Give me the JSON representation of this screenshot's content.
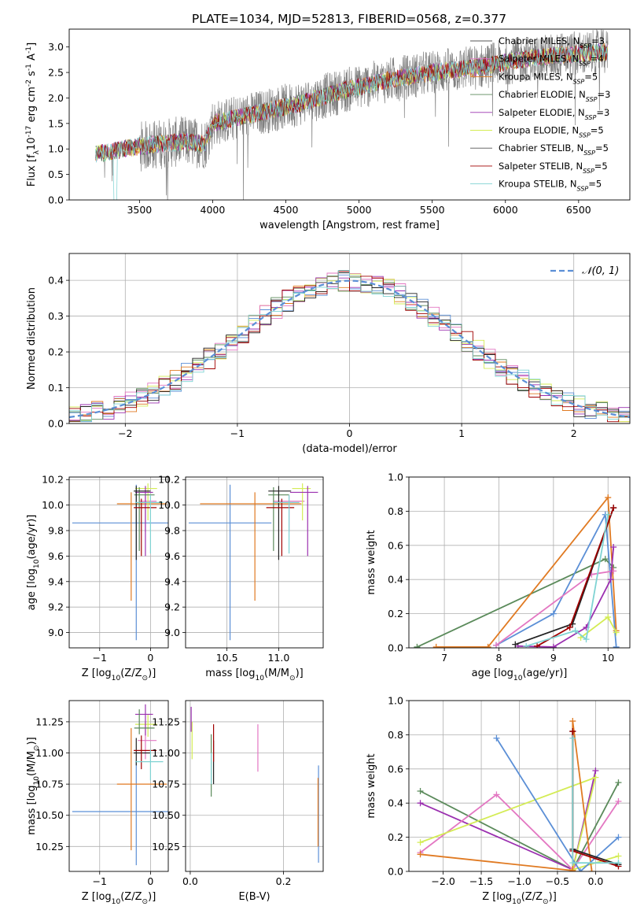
{
  "title": "PLATE=1034, MJD=52813, FIBERID=0568, z=0.377",
  "colors": {
    "cm": "#ffffff",
    "chabrier_miles": "#222222",
    "salpeter_miles": "#e377c2",
    "kroupa_miles": "#e07a22",
    "chabrier_elodie": "#5a8a5a",
    "salpeter_elodie": "#9b30b0",
    "kroupa_elodie": "#d4ec55",
    "chabrier_stelib": "#555555",
    "salpeter_stelib": "#a00000",
    "kroupa_stelib": "#7fd3d3",
    "data": "#808080",
    "normal": "#5b8fd6",
    "blue": "#5b8fd6"
  },
  "chart_data": [
    {
      "id": "spectrum",
      "type": "line",
      "xlabel": "wavelength [Angstrom, rest frame]",
      "ylabel": "Flux [f$_\\lambda$10$^{-17}$ erg cm$^{-2}$ s$^{-1}$ A$^{-1}$]",
      "xlim": [
        3020,
        6850
      ],
      "ylim": [
        0,
        3.35
      ],
      "xticks": [
        3500,
        4000,
        4500,
        5000,
        5500,
        6000,
        6500
      ],
      "yticks": [
        0.0,
        0.5,
        1.0,
        1.5,
        2.0,
        2.5,
        3.0
      ],
      "grid": false,
      "legend_position": "top-right",
      "legend": [
        {
          "label": "Chabrier MILES, N",
          "sub": "SSP",
          "tail": "=3",
          "color": "#ffffff"
        },
        {
          "label": "Salpeter MILES, N",
          "sub": "SSP",
          "tail": "=4",
          "color": "#e377c2"
        },
        {
          "label": "Kroupa MILES, N",
          "sub": "SSP",
          "tail": "=5",
          "color": "#e07a22"
        },
        {
          "label": "Chabrier ELODIE, N",
          "sub": "SSP",
          "tail": "=3",
          "color": "#5a8a5a"
        },
        {
          "label": "Salpeter ELODIE, N",
          "sub": "SSP",
          "tail": "=3",
          "color": "#9b30b0"
        },
        {
          "label": "Kroupa ELODIE, N",
          "sub": "SSP",
          "tail": "=5",
          "color": "#d4ec55"
        },
        {
          "label": "Chabrier STELIB, N",
          "sub": "SSP",
          "tail": "=5",
          "color": "#555555"
        },
        {
          "label": "Salpeter STELIB, N",
          "sub": "SSP",
          "tail": "=5",
          "color": "#a00000"
        },
        {
          "label": "Kroupa STELIB, N",
          "sub": "SSP",
          "tail": "=5",
          "color": "#7fd3d3"
        }
      ],
      "continuum": [
        [
          3200,
          0.9
        ],
        [
          3500,
          1.05
        ],
        [
          3800,
          1.15
        ],
        [
          3950,
          1.1
        ],
        [
          4000,
          1.5
        ],
        [
          4300,
          1.7
        ],
        [
          4600,
          1.9
        ],
        [
          4900,
          2.15
        ],
        [
          5200,
          2.35
        ],
        [
          5500,
          2.5
        ],
        [
          5800,
          2.6
        ],
        [
          6100,
          2.75
        ],
        [
          6400,
          2.85
        ],
        [
          6700,
          2.9
        ]
      ]
    },
    {
      "id": "residual-histogram",
      "type": "line",
      "xlabel": "(data-model)/error",
      "ylabel": "Normed distribution",
      "xlim": [
        -2.5,
        2.5
      ],
      "ylim": [
        0,
        0.475
      ],
      "xticks": [
        -2,
        -1,
        0,
        1,
        2
      ],
      "yticks": [
        0.0,
        0.1,
        0.2,
        0.3,
        0.4
      ],
      "grid": true,
      "legend_position": "top-right",
      "normal_label": "$\\mathcal{N}(0,1)$",
      "bin_width": 0.1
    },
    {
      "id": "age-vs-Z",
      "type": "scatter",
      "xlabel": "Z [log$_{10}$(Z/Z$_\\odot$)]",
      "ylabel": "age  [log$_{10}$(age/yr)]",
      "xlim": [
        -1.6,
        0.35
      ],
      "ylim": [
        8.88,
        10.22
      ],
      "xticks": [
        -1,
        0
      ],
      "yticks": [
        9.0,
        9.2,
        9.4,
        9.6,
        9.8,
        10.0,
        10.2
      ],
      "grid": true,
      "points": [
        {
          "color": "#5b8fd6",
          "x": -0.28,
          "xerr": [
            1.26,
            1.34
          ],
          "y": 9.86,
          "yerr": [
            0.92,
            0.3
          ]
        },
        {
          "color": "#e07a22",
          "x": -0.38,
          "xerr": [
            0.28,
            0.7
          ],
          "y": 10.01,
          "yerr": [
            0.76,
            0.09
          ]
        },
        {
          "color": "#e377c2",
          "x": -0.1,
          "xerr": [
            0.12,
            0.22
          ],
          "y": 10.03,
          "yerr": [
            0.24,
            0.05
          ]
        },
        {
          "color": "#d4ec55",
          "x": -0.05,
          "xerr": [
            0.25,
            0.18
          ],
          "y": 10.13,
          "yerr": [
            0.25,
            0.04
          ]
        },
        {
          "color": "#9b30b0",
          "x": -0.1,
          "xerr": [
            0.2,
            0.15
          ],
          "y": 10.1,
          "yerr": [
            0.5,
            0.05
          ]
        },
        {
          "color": "#5a8a5a",
          "x": -0.22,
          "xerr": [
            0.1,
            0.3
          ],
          "y": 10.08,
          "yerr": [
            0.44,
            0.06
          ]
        },
        {
          "color": "#222222",
          "x": -0.28,
          "xerr": [
            0.05,
            0.28
          ],
          "y": 10.11,
          "yerr": [
            0.54,
            0.04
          ]
        },
        {
          "color": "#a00000",
          "x": -0.18,
          "xerr": [
            0.15,
            0.3
          ],
          "y": 9.98,
          "yerr": [
            0.38,
            0.07
          ]
        },
        {
          "color": "#7fd3d3",
          "x": 0.0,
          "xerr": [
            0.3,
            0.25
          ],
          "y": 10.02,
          "yerr": [
            0.4,
            0.06
          ]
        }
      ]
    },
    {
      "id": "age-vs-mass",
      "type": "scatter",
      "xlabel": "mass [log$_{10}$(M/M$_\\odot$)]",
      "ylabel": "",
      "xlim": [
        10.1,
        11.43
      ],
      "ylim": [
        8.88,
        10.22
      ],
      "xticks": [
        10.5,
        11.0
      ],
      "yticks": [
        9.0,
        9.2,
        9.4,
        9.6,
        9.8,
        10.0,
        10.2
      ],
      "grid": true,
      "points": [
        {
          "color": "#5b8fd6",
          "x": 10.53,
          "xerr": [
            0.4,
            0.4
          ],
          "y": 9.86,
          "yerr": [
            0.92,
            0.3
          ]
        },
        {
          "color": "#e07a22",
          "x": 10.77,
          "xerr": [
            0.53,
            0.45
          ],
          "y": 10.01,
          "yerr": [
            0.76,
            0.09
          ]
        },
        {
          "color": "#e377c2",
          "x": 11.1,
          "xerr": [
            0.15,
            0.15
          ],
          "y": 10.03,
          "yerr": [
            0.24,
            0.05
          ]
        },
        {
          "color": "#d4ec55",
          "x": 11.23,
          "xerr": [
            0.1,
            0.08
          ],
          "y": 10.13,
          "yerr": [
            0.25,
            0.04
          ]
        },
        {
          "color": "#9b30b0",
          "x": 11.28,
          "xerr": [
            0.17,
            0.1
          ],
          "y": 10.1,
          "yerr": [
            0.5,
            0.05
          ]
        },
        {
          "color": "#5a8a5a",
          "x": 10.95,
          "xerr": [
            0.05,
            0.15
          ],
          "y": 10.08,
          "yerr": [
            0.44,
            0.06
          ]
        },
        {
          "color": "#222222",
          "x": 11.0,
          "xerr": [
            0.1,
            0.12
          ],
          "y": 10.11,
          "yerr": [
            0.54,
            0.04
          ]
        },
        {
          "color": "#a00000",
          "x": 11.03,
          "xerr": [
            0.15,
            0.12
          ],
          "y": 9.98,
          "yerr": [
            0.38,
            0.07
          ]
        },
        {
          "color": "#7fd3d3",
          "x": 11.1,
          "xerr": [
            0.15,
            0.1
          ],
          "y": 10.02,
          "yerr": [
            0.4,
            0.06
          ]
        }
      ]
    },
    {
      "id": "mass-weight-vs-age",
      "type": "line",
      "xlabel": "age  [log$_{10}$(age/yr)]",
      "ylabel": "mass weight",
      "xlim": [
        6.35,
        10.4
      ],
      "ylim": [
        0,
        1.0
      ],
      "xticks": [
        7,
        8,
        9,
        10
      ],
      "yticks": [
        0.0,
        0.2,
        0.4,
        0.6,
        0.8,
        1.0
      ],
      "grid": true,
      "series": [
        {
          "color": "#5a8a5a",
          "points": [
            [
              6.5,
              0.005
            ],
            [
              9.95,
              0.52
            ],
            [
              10.1,
              0.47
            ]
          ]
        },
        {
          "color": "#e07a22",
          "points": [
            [
              6.85,
              0.005
            ],
            [
              7.8,
              0.005
            ],
            [
              10.0,
              0.88
            ],
            [
              10.15,
              0.1
            ]
          ]
        },
        {
          "color": "#5b8fd6",
          "points": [
            [
              7.95,
              0.015
            ],
            [
              9.0,
              0.2
            ],
            [
              9.95,
              0.78
            ],
            [
              10.15,
              0.005
            ]
          ]
        },
        {
          "color": "#e377c2",
          "points": [
            [
              7.95,
              0.015
            ],
            [
              9.7,
              0.43
            ],
            [
              10.1,
              0.45
            ]
          ]
        },
        {
          "color": "#9b30b0",
          "points": [
            [
              8.35,
              0.01
            ],
            [
              9.0,
              0.005
            ],
            [
              9.6,
              0.12
            ],
            [
              10.05,
              0.4
            ],
            [
              10.1,
              0.59
            ]
          ]
        },
        {
          "color": "#d4ec55",
          "points": [
            [
              9.5,
              0.06
            ],
            [
              10.0,
              0.18
            ],
            [
              10.15,
              0.09
            ]
          ]
        },
        {
          "color": "#222222",
          "points": [
            [
              8.3,
              0.02
            ],
            [
              9.35,
              0.14
            ],
            [
              10.1,
              0.82
            ]
          ]
        },
        {
          "color": "#a00000",
          "points": [
            [
              8.7,
              0.01
            ],
            [
              9.3,
              0.12
            ],
            [
              10.1,
              0.82
            ]
          ]
        },
        {
          "color": "#7fd3d3",
          "points": [
            [
              8.5,
              0.01
            ],
            [
              9.4,
              0.1
            ],
            [
              9.6,
              0.05
            ],
            [
              10.0,
              0.78
            ]
          ]
        }
      ]
    },
    {
      "id": "mass-vs-Z",
      "type": "scatter",
      "xlabel": "Z [log$_{10}$(Z/Z$_\\odot$)]",
      "ylabel": "mass [log$_{10}$(M/M$_\\odot$)]",
      "xlim": [
        -1.6,
        0.35
      ],
      "ylim": [
        10.05,
        11.42
      ],
      "xticks": [
        -1,
        0
      ],
      "yticks": [
        10.25,
        10.5,
        10.75,
        11.0,
        11.25
      ],
      "grid": true,
      "points": [
        {
          "color": "#5b8fd6",
          "x": -0.28,
          "xerr": [
            1.26,
            1.3
          ],
          "y": 10.53,
          "yerr": [
            0.43,
            0.4
          ]
        },
        {
          "color": "#e07a22",
          "x": -0.38,
          "xerr": [
            0.28,
            0.7
          ],
          "y": 10.75,
          "yerr": [
            0.53,
            0.45
          ]
        },
        {
          "color": "#e377c2",
          "x": -0.1,
          "xerr": [
            0.15,
            0.22
          ],
          "y": 11.1,
          "yerr": [
            0.15,
            0.15
          ]
        },
        {
          "color": "#d4ec55",
          "x": -0.05,
          "xerr": [
            0.25,
            0.18
          ],
          "y": 11.23,
          "yerr": [
            0.1,
            0.08
          ]
        },
        {
          "color": "#9b30b0",
          "x": -0.1,
          "xerr": [
            0.2,
            0.15
          ],
          "y": 11.31,
          "yerr": [
            0.17,
            0.08
          ]
        },
        {
          "color": "#5a8a5a",
          "x": -0.22,
          "xerr": [
            0.1,
            0.3
          ],
          "y": 11.2,
          "yerr": [
            0.05,
            0.15
          ]
        },
        {
          "color": "#222222",
          "x": -0.28,
          "xerr": [
            0.05,
            0.28
          ],
          "y": 11.0,
          "yerr": [
            0.1,
            0.12
          ]
        },
        {
          "color": "#a00000",
          "x": -0.18,
          "xerr": [
            0.15,
            0.3
          ],
          "y": 11.02,
          "yerr": [
            0.15,
            0.12
          ]
        },
        {
          "color": "#7fd3d3",
          "x": 0.0,
          "xerr": [
            0.3,
            0.25
          ],
          "y": 10.93,
          "yerr": [
            0.15,
            0.1
          ]
        }
      ]
    },
    {
      "id": "mass-vs-ebv",
      "type": "scatter",
      "xlabel": "E(B-V)",
      "ylabel": "",
      "xlim": [
        -0.01,
        0.285
      ],
      "ylim": [
        10.05,
        11.42
      ],
      "xticks": [
        0.0,
        0.2
      ],
      "yticks": [
        10.25,
        10.5,
        10.75,
        11.0,
        11.25
      ],
      "grid": true,
      "points": [
        {
          "color": "#5b8fd6",
          "x": 0.275,
          "y": 10.55,
          "yerr": [
            0.43,
            0.35
          ]
        },
        {
          "color": "#e07a22",
          "x": 0.274,
          "y": 10.5,
          "yerr": [
            0.25,
            0.3
          ]
        },
        {
          "color": "#e377c2",
          "x": 0.145,
          "y": 11.05,
          "yerr": [
            0.2,
            0.18
          ]
        },
        {
          "color": "#d4ec55",
          "x": 0.004,
          "y": 11.1,
          "yerr": [
            0.15,
            0.15
          ]
        },
        {
          "color": "#9b30b0",
          "x": 0.002,
          "y": 11.25,
          "yerr": [
            0.08,
            0.12
          ]
        },
        {
          "color": "#5a8a5a",
          "x": 0.045,
          "y": 10.9,
          "yerr": [
            0.25,
            0.25
          ]
        },
        {
          "color": "#222222",
          "x": 0.05,
          "y": 10.95,
          "yerr": [
            0.2,
            0.15
          ]
        },
        {
          "color": "#a00000",
          "x": 0.05,
          "y": 11.05,
          "yerr": [
            0.12,
            0.18
          ]
        },
        {
          "color": "#7fd3d3",
          "x": 0.045,
          "y": 10.9,
          "yerr": [
            0.15,
            0.1
          ]
        }
      ]
    },
    {
      "id": "mass-weight-vs-Z",
      "type": "line",
      "xlabel": "Z [log$_{10}$(Z/Z$_\\odot$)]",
      "ylabel": "mass weight",
      "xlim": [
        -2.45,
        0.45
      ],
      "ylim": [
        0,
        1.0
      ],
      "xticks": [
        -2.0,
        -1.5,
        -1.0,
        -0.5,
        0.0
      ],
      "yticks": [
        0.0,
        0.2,
        0.4,
        0.6,
        0.8,
        1.0
      ],
      "grid": true,
      "series": [
        {
          "color": "#5a8a5a",
          "points": [
            [
              -2.3,
              0.47
            ],
            [
              -0.3,
              0.01
            ],
            [
              0.3,
              0.52
            ]
          ]
        },
        {
          "color": "#9b30b0",
          "points": [
            [
              -2.3,
              0.4
            ],
            [
              -0.3,
              0.01
            ],
            [
              -0.0,
              0.59
            ]
          ]
        },
        {
          "color": "#e377c2",
          "points": [
            [
              -2.3,
              0.11
            ],
            [
              -1.3,
              0.45
            ],
            [
              -0.3,
              0.01
            ],
            [
              0.3,
              0.41
            ]
          ]
        },
        {
          "color": "#d4ec55",
          "points": [
            [
              -2.3,
              0.17
            ],
            [
              0.0,
              0.55
            ],
            [
              -0.3,
              0.01
            ],
            [
              0.3,
              0.09
            ]
          ]
        },
        {
          "color": "#e07a22",
          "points": [
            [
              -2.3,
              0.1
            ],
            [
              -0.3,
              0.005
            ],
            [
              -0.3,
              0.88
            ],
            [
              -0.05,
              0.0
            ]
          ]
        },
        {
          "color": "#5b8fd6",
          "points": [
            [
              -1.3,
              0.78
            ],
            [
              -0.2,
              0.0
            ],
            [
              0.3,
              0.2
            ]
          ]
        },
        {
          "color": "#222222",
          "points": [
            [
              -0.3,
              0.82
            ],
            [
              -0.3,
              0.13
            ],
            [
              0.3,
              0.04
            ]
          ]
        },
        {
          "color": "#a00000",
          "points": [
            [
              -0.3,
              0.82
            ],
            [
              -0.3,
              0.12
            ],
            [
              0.3,
              0.03
            ]
          ]
        },
        {
          "color": "#7fd3d3",
          "points": [
            [
              -0.3,
              0.78
            ],
            [
              -0.3,
              0.05
            ],
            [
              0.3,
              0.05
            ]
          ]
        }
      ]
    }
  ]
}
